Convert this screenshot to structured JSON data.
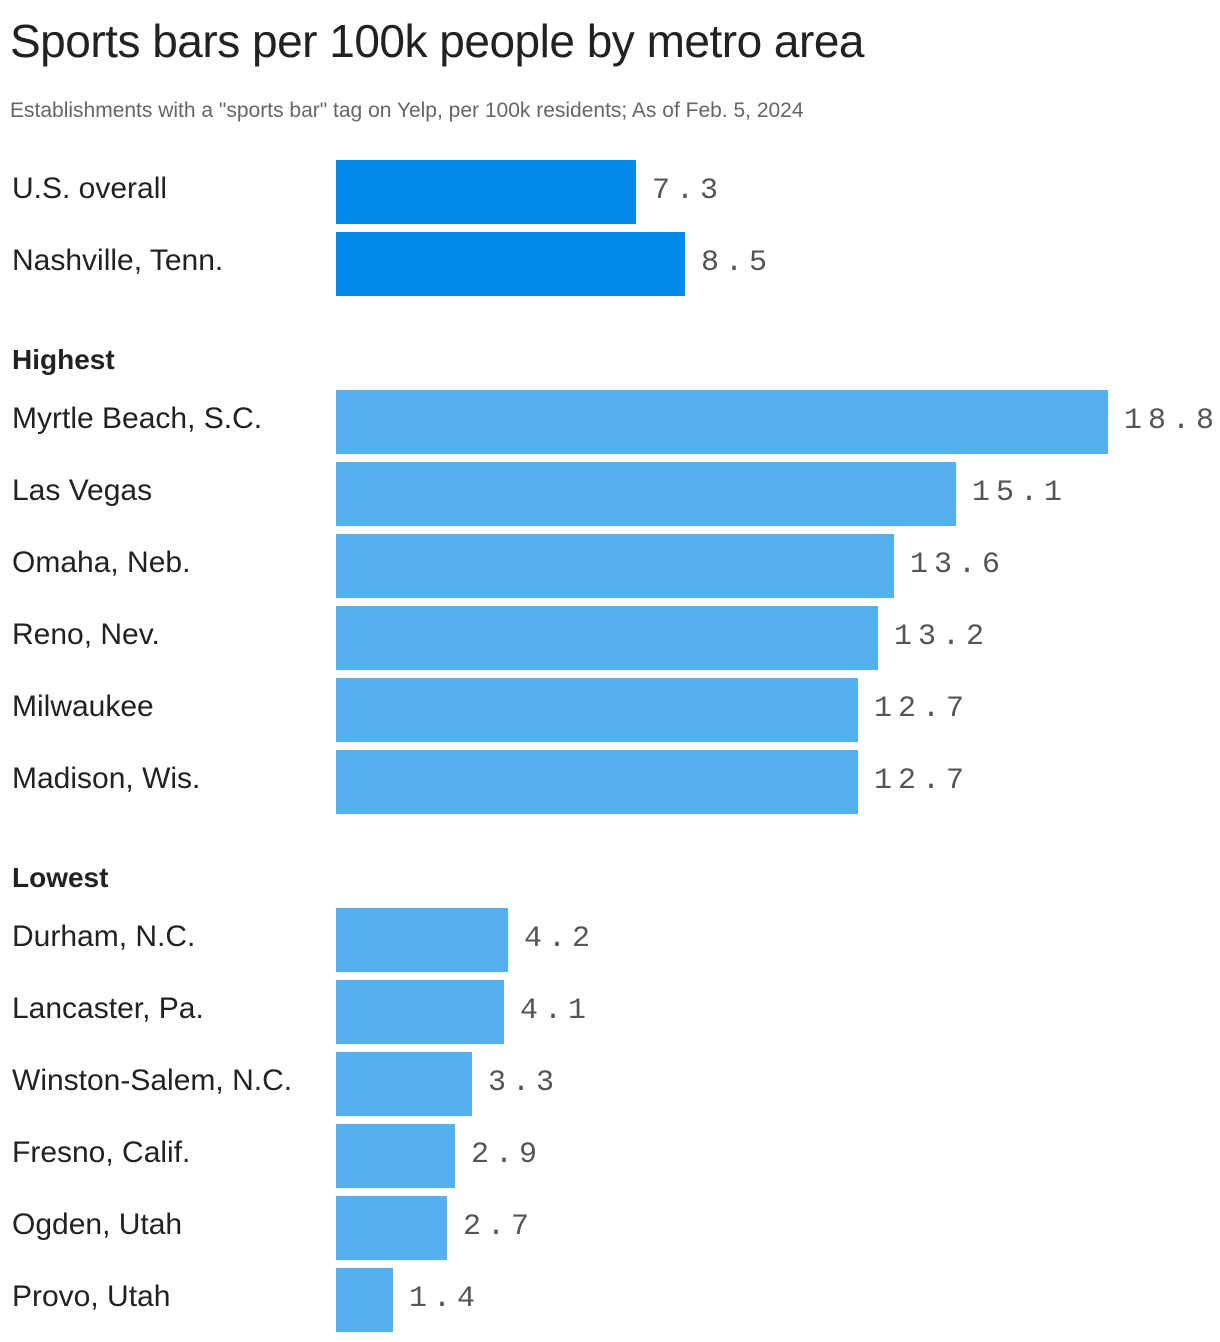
{
  "title": "Sports bars per 100k people by metro area",
  "subtitle": "Establishments with a \"sports bar\" tag on Yelp, per 100k residents; As of Feb. 5, 2024",
  "colors": {
    "reference_bar": "#0288e6",
    "bar": "#54b0ef",
    "text": "#222222",
    "value_text": "#555555",
    "subtitle_text": "#666666"
  },
  "chart_data": {
    "type": "bar",
    "orientation": "horizontal",
    "title": "Sports bars per 100k people by metro area",
    "subtitle": "Establishments with a \"sports bar\" tag on Yelp, per 100k residents; As of Feb. 5, 2024",
    "xlim": [
      0,
      18.8
    ],
    "grid": false,
    "groups": [
      {
        "header": "",
        "color": "#0288e6",
        "rows": [
          {
            "label": "U.S. overall",
            "value": 7.3,
            "value_label": "7.3"
          },
          {
            "label": "Nashville, Tenn.",
            "value": 8.5,
            "value_label": "8.5"
          }
        ]
      },
      {
        "header": "Highest",
        "color": "#54b0ef",
        "rows": [
          {
            "label": "Myrtle Beach, S.C.",
            "value": 18.8,
            "value_label": "18.8"
          },
          {
            "label": "Las Vegas",
            "value": 15.1,
            "value_label": "15.1"
          },
          {
            "label": "Omaha, Neb.",
            "value": 13.6,
            "value_label": "13.6"
          },
          {
            "label": "Reno, Nev.",
            "value": 13.2,
            "value_label": "13.2"
          },
          {
            "label": "Milwaukee",
            "value": 12.7,
            "value_label": "12.7"
          },
          {
            "label": "Madison, Wis.",
            "value": 12.7,
            "value_label": "12.7"
          }
        ]
      },
      {
        "header": "Lowest",
        "color": "#54b0ef",
        "rows": [
          {
            "label": "Durham, N.C.",
            "value": 4.2,
            "value_label": "4.2"
          },
          {
            "label": "Lancaster, Pa.",
            "value": 4.1,
            "value_label": "4.1"
          },
          {
            "label": "Winston-Salem, N.C.",
            "value": 3.3,
            "value_label": "3.3"
          },
          {
            "label": "Fresno, Calif.",
            "value": 2.9,
            "value_label": "2.9"
          },
          {
            "label": "Ogden, Utah",
            "value": 2.7,
            "value_label": "2.7"
          },
          {
            "label": "Provo, Utah",
            "value": 1.4,
            "value_label": "1.4"
          }
        ]
      }
    ]
  }
}
